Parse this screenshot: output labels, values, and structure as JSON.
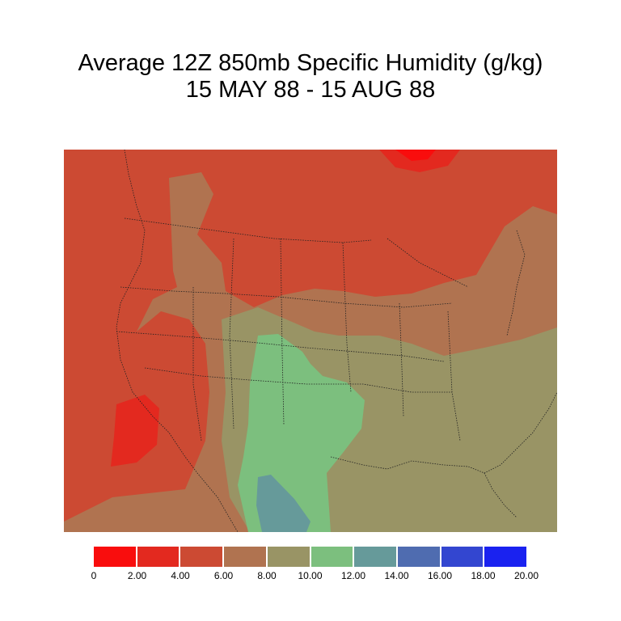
{
  "title": {
    "line1": "Average 12Z 850mb Specific Humidity (g/kg)",
    "line2": "15 MAY 88 - 15 AUG 88"
  },
  "colors": {
    "c0_2": "#f90d0d",
    "c2_4": "#e3291f",
    "c4_6": "#cc4a33",
    "c6_8": "#b07350",
    "c8_10": "#999465",
    "c10_12": "#7cbf7e",
    "c12_14": "#669a9a",
    "c14_16": "#4f6cb0",
    "c16_18": "#3346d0",
    "c18_20": "#1a22f0"
  },
  "legend": {
    "bins": [
      "c0_2",
      "c2_4",
      "c4_6",
      "c6_8",
      "c8_10",
      "c10_12",
      "c12_14",
      "c14_16",
      "c16_18",
      "c18_20"
    ],
    "ticks": [
      "0",
      "2.00",
      "4.00",
      "6.00",
      "8.00",
      "10.00",
      "12.00",
      "14.00",
      "16.00",
      "18.00",
      "20.00"
    ]
  }
}
